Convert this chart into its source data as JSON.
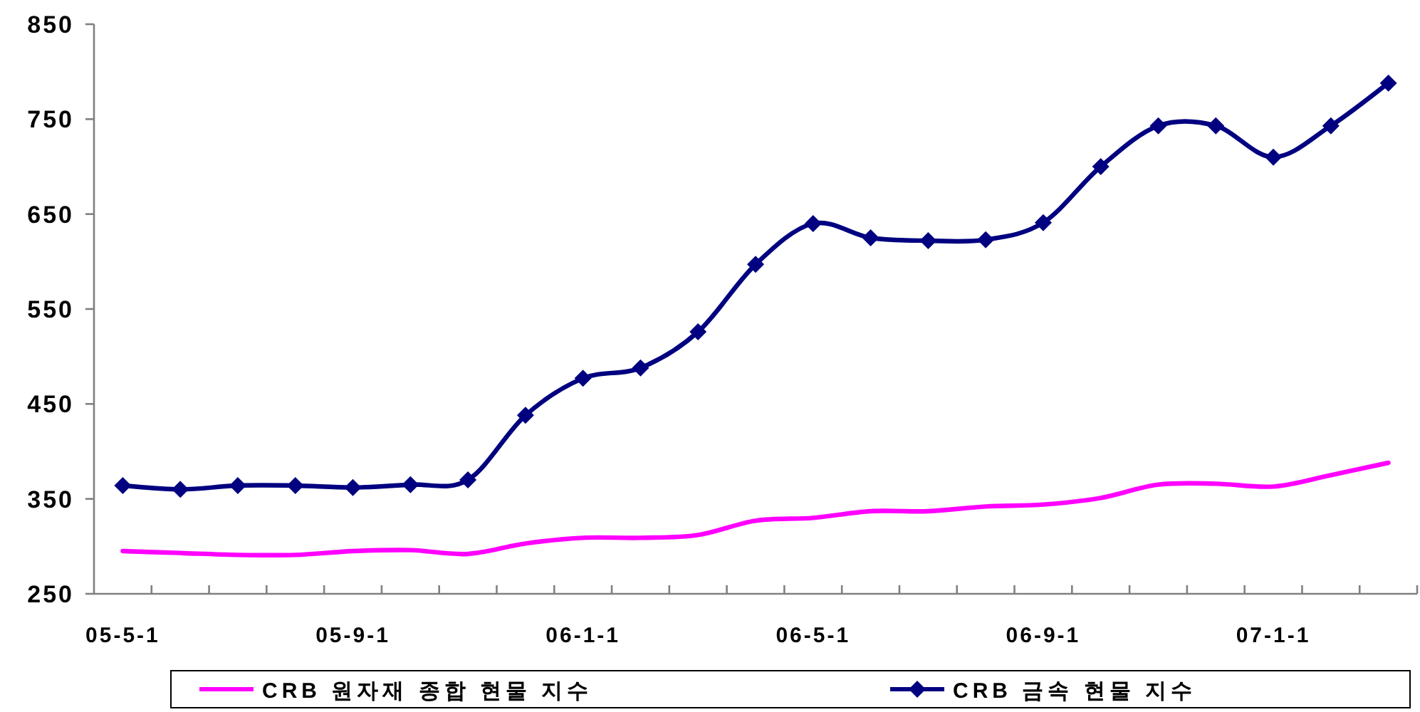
{
  "chart_data": {
    "type": "line",
    "categories": [
      "05-5-1",
      null,
      null,
      null,
      "05-9-1",
      null,
      null,
      null,
      "06-1-1",
      null,
      null,
      null,
      "06-5-1",
      null,
      null,
      null,
      "06-9-1",
      null,
      null,
      null,
      "07-1-1",
      null,
      null
    ],
    "series": [
      {
        "name": "CRB 원자재 종합 현물 지수",
        "color": "#ff00ff",
        "marker": "none",
        "values": [
          295,
          293,
          291,
          291,
          295,
          296,
          292,
          303,
          309,
          309,
          312,
          327,
          330,
          337,
          337,
          342,
          344,
          351,
          365,
          366,
          363,
          375,
          388
        ]
      },
      {
        "name": "CRB 금속 현물 지수",
        "color": "#000080",
        "marker": "diamond",
        "values": [
          364,
          360,
          364,
          364,
          362,
          365,
          370,
          438,
          477,
          488,
          526,
          597,
          640,
          625,
          622,
          623,
          641,
          700,
          743,
          743,
          710,
          743,
          788
        ]
      }
    ],
    "ylim": [
      250,
      850
    ],
    "yticks": [
      250,
      350,
      450,
      550,
      650,
      750,
      850
    ],
    "grid": false,
    "legend": "bottom"
  }
}
